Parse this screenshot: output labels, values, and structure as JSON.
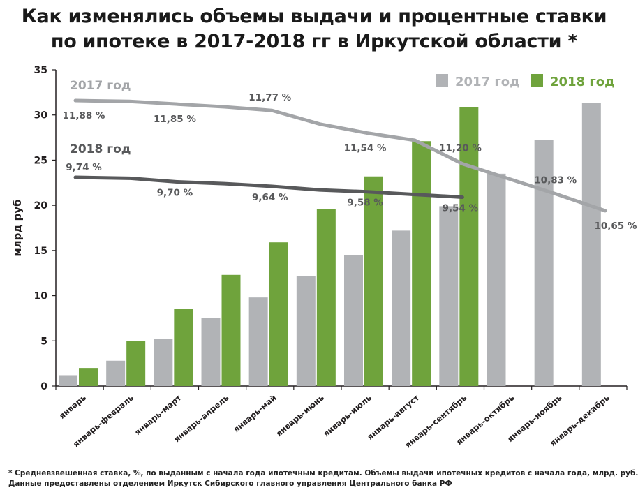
{
  "title": {
    "line1": "Как  изменялись объемы выдачи и процентные ставки",
    "line2": "по ипотеке в 2017-2018 гг в Иркутской области *"
  },
  "footnote": {
    "line1": "* Средневзвешенная ставка, %, по выданным с начала года ипотечным кредитам.  Объемы выдачи ипотечных кредитов  с начала года, млрд. руб.",
    "line2": "Данные предоставлены отделением Иркутск Сибирского главного управления Центрального банка РФ"
  },
  "colors": {
    "bar2017": "#b1b3b6",
    "bar2018": "#6fa33c",
    "line2017": "#a3a5a8",
    "line2018": "#58595b",
    "axis": "#231f20",
    "rateLabel": "#58595b"
  },
  "chart_data": {
    "type": "bar",
    "title": "Как  изменялись объемы выдачи и процентные ставки по ипотеке в 2017-2018 гг в Иркутской области *",
    "xlabel": "",
    "ylabel": "млрд руб",
    "ylim": [
      0,
      35
    ],
    "yticks": [
      "0",
      "5",
      "10",
      "15",
      "20",
      "25",
      "30",
      "35"
    ],
    "legend_position": "top-right",
    "categories": [
      "январь",
      "январь-февраль",
      "январь-март",
      "январь-апрель",
      "январь-май",
      "январь-июнь",
      "январь-июль",
      "январь-август",
      "январь-сентябрь",
      "январь-октябрь",
      "январь-ноябрь",
      "январь-декабрь"
    ],
    "series": [
      {
        "name": "2017 год",
        "values": [
          1.2,
          2.8,
          5.2,
          7.5,
          9.8,
          12.2,
          14.5,
          17.2,
          19.9,
          23.5,
          27.2,
          31.3
        ]
      },
      {
        "name": "2018 год",
        "values": [
          2.0,
          5.0,
          8.5,
          12.3,
          15.9,
          19.6,
          23.2,
          27.1,
          30.9,
          null,
          null,
          null
        ]
      }
    ],
    "rate_lines": [
      {
        "name": "2017 год",
        "label": "2017 год",
        "plot_values": [
          31.6,
          31.5,
          31.2,
          30.9,
          30.5,
          29.0,
          28.0,
          27.2,
          24.6,
          22.9,
          21.2,
          19.4
        ],
        "rate_labels": [
          "11,88 %",
          null,
          "11,85 %",
          null,
          "11,77 %",
          null,
          "11,54 %",
          null,
          "11,20 %",
          null,
          "10,83 %",
          "10,65 %"
        ]
      },
      {
        "name": "2018 год",
        "label": "2018 год",
        "plot_values": [
          23.1,
          23.0,
          22.6,
          22.4,
          22.1,
          21.7,
          21.5,
          21.2,
          20.9,
          null,
          null,
          null
        ],
        "rate_labels": [
          "9,74 %",
          null,
          "9,70 %",
          null,
          "9,64 %",
          null,
          "9,58 %",
          null,
          "9,54 %",
          null,
          null,
          null
        ]
      }
    ]
  }
}
